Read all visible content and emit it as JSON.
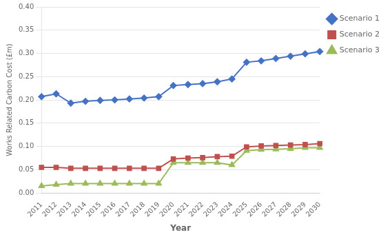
{
  "chart_data": {
    "type": "line",
    "categories": [
      "2011",
      "2012",
      "2013",
      "2014",
      "2015",
      "2016",
      "2017",
      "2018",
      "2019",
      "2020",
      "2021",
      "2022",
      "2023",
      "2024",
      "2025",
      "2026",
      "2027",
      "2028",
      "2029",
      "2030"
    ],
    "series": [
      {
        "name": "Scenario 1",
        "color": "#4472C4",
        "marker": "diamond",
        "values": [
          0.207,
          0.213,
          0.193,
          0.197,
          0.199,
          0.2,
          0.202,
          0.204,
          0.207,
          0.231,
          0.233,
          0.235,
          0.239,
          0.245,
          0.281,
          0.284,
          0.289,
          0.294,
          0.299,
          0.304
        ]
      },
      {
        "name": "Scenario 2",
        "color": "#C0504D",
        "marker": "square",
        "values": [
          0.055,
          0.055,
          0.053,
          0.053,
          0.053,
          0.053,
          0.053,
          0.053,
          0.053,
          0.073,
          0.075,
          0.076,
          0.078,
          0.079,
          0.099,
          0.101,
          0.102,
          0.103,
          0.104,
          0.106
        ]
      },
      {
        "name": "Scenario 3",
        "color": "#9BBB59",
        "marker": "triangle",
        "values": [
          0.015,
          0.018,
          0.02,
          0.02,
          0.02,
          0.02,
          0.02,
          0.02,
          0.02,
          0.065,
          0.065,
          0.065,
          0.065,
          0.06,
          0.091,
          0.093,
          0.094,
          0.095,
          0.097,
          0.097
        ]
      }
    ],
    "xlabel": "Year",
    "ylabel": "Works Related Carbon Cost (£m)",
    "ylim": [
      0.0,
      0.4
    ],
    "yticks": [
      {
        "value": 0,
        "label": "0.00"
      },
      0.05,
      {
        "value": 0.1,
        "label": "0.10"
      },
      0.15,
      {
        "value": 0.2,
        "label": "0.20"
      },
      0.25,
      {
        "value": 0.3,
        "label": "0.30"
      },
      0.35,
      {
        "value": 0.4,
        "label": "0.40"
      }
    ],
    "grid": "y",
    "legend": "right"
  }
}
